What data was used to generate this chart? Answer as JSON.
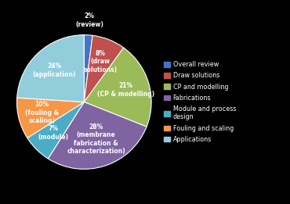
{
  "values": [
    2,
    8,
    21,
    28,
    7,
    10,
    24
  ],
  "colors": [
    "#4472C4",
    "#C0504D",
    "#9BBB59",
    "#8064A2",
    "#4BACC6",
    "#F79646",
    "#92CDDC"
  ],
  "label_texts": [
    "2%\n(review)",
    "8%\n(draw\nsolutions)",
    "21%\n(CP & modelling)",
    "28%\n(membrane\nfabrication &\ncharacterization)",
    "7%\n(module)",
    "10%\n(fouling &\nscaling)",
    "24%\n(application)"
  ],
  "label_radii": [
    1.22,
    0.65,
    0.65,
    0.58,
    0.65,
    0.65,
    0.65
  ],
  "legend_colors": [
    "#4472C4",
    "#C0504D",
    "#9BBB59",
    "#8064A2",
    "#4BACC6",
    "#F79646",
    "#92CDDC"
  ],
  "legend_labels": [
    "Overall review",
    "Draw solutions",
    "CP and modelling",
    "Fabrications",
    "Module and process\ndesign",
    "Fouling and scaling",
    "Applications"
  ],
  "background_color": "#000000",
  "text_color": "#ffffff",
  "startangle": 90
}
